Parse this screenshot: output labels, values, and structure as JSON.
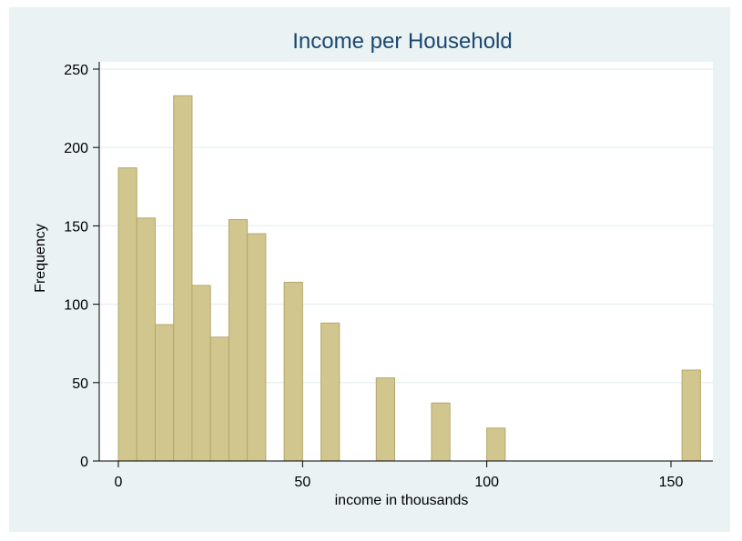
{
  "chart_data": {
    "type": "bar",
    "title": "Income per Household",
    "xlabel": "income in thousands",
    "ylabel": "Frequency",
    "xlim": [
      -5,
      162.5
    ],
    "ylim": [
      0,
      250
    ],
    "x_ticks": [
      0,
      50,
      100,
      150
    ],
    "y_ticks": [
      0,
      50,
      100,
      150,
      200,
      250
    ],
    "grid": true,
    "bin_width": 5,
    "bins": [
      {
        "start": 0,
        "value": 187
      },
      {
        "start": 5,
        "value": 155
      },
      {
        "start": 10,
        "value": 87
      },
      {
        "start": 15,
        "value": 233
      },
      {
        "start": 20,
        "value": 112
      },
      {
        "start": 25,
        "value": 79
      },
      {
        "start": 30,
        "value": 154
      },
      {
        "start": 35,
        "value": 145
      },
      {
        "start": 45,
        "value": 114
      },
      {
        "start": 55,
        "value": 88
      },
      {
        "start": 70,
        "value": 53
      },
      {
        "start": 85,
        "value": 37
      },
      {
        "start": 100,
        "value": 21
      },
      {
        "start": 153,
        "value": 58
      }
    ]
  },
  "colors": {
    "bar_fill": "#d1c78e",
    "bar_stroke": "#b2a86a",
    "title": "#1a476f",
    "grid": "#eaf2f3",
    "background": "#eaf2f3",
    "plot_background": "#ffffff"
  }
}
